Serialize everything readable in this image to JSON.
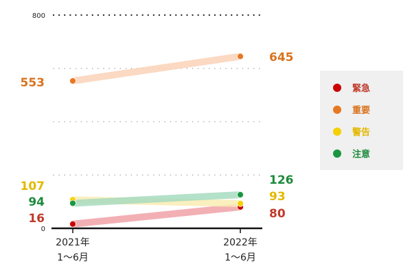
{
  "chart_data": {
    "type": "line",
    "categories": [
      [
        "2021年",
        "1～6月"
      ],
      [
        "2022年",
        "1～6月"
      ]
    ],
    "ylim": [
      0,
      800
    ],
    "yticks": [
      0,
      800
    ],
    "grid": "dotted",
    "legend_placement": "right",
    "series": [
      {
        "name": "緊急",
        "values": [
          16,
          80
        ],
        "color": "#cc0000",
        "label_color": "#c0392b",
        "line_color": "#f0a3a8"
      },
      {
        "name": "重要",
        "values": [
          553,
          645
        ],
        "color": "#e87722",
        "label_color": "#d9731d",
        "line_color": "#fbd3b8"
      },
      {
        "name": "警告",
        "values": [
          107,
          93
        ],
        "color": "#f5d000",
        "label_color": "#e3b800",
        "line_color": "#faedb3"
      },
      {
        "name": "注意",
        "values": [
          94,
          126
        ],
        "color": "#1a9641",
        "label_color": "#1e8a3c",
        "line_color": "#a8dcc0"
      }
    ]
  }
}
